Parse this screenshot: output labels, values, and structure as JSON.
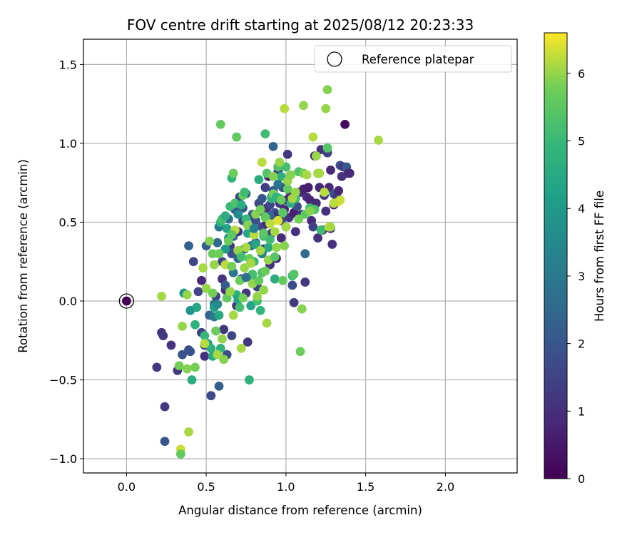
{
  "chart_data": {
    "type": "scatter",
    "title": "FOV centre drift starting at 2025/08/12 20:23:33",
    "xlabel": "Angular distance from reference (arcmin)",
    "ylabel": "Rotation from reference (arcmin)",
    "xlim": [
      -0.27,
      2.45
    ],
    "ylim": [
      -1.09,
      1.66
    ],
    "xticks": [
      0.0,
      0.5,
      1.0,
      1.5,
      2.0
    ],
    "xtick_labels": [
      "0.0",
      "0.5",
      "1.0",
      "1.5",
      "2.0"
    ],
    "yticks": [
      -1.0,
      -0.5,
      0.0,
      0.5,
      1.0,
      1.5
    ],
    "ytick_labels": [
      "−1.0",
      "−0.5",
      "0.0",
      "0.5",
      "1.0",
      "1.5"
    ],
    "grid": true,
    "colormap": "viridis",
    "colorbar": {
      "label": "Hours from first FF file",
      "range": [
        0,
        6.6
      ],
      "ticks": [
        0,
        1,
        2,
        3,
        4,
        5,
        6
      ],
      "tick_labels": [
        "0",
        "1",
        "2",
        "3",
        "4",
        "5",
        "6"
      ]
    },
    "legend": {
      "placement": "top-right",
      "entries": [
        {
          "label": "Reference platepar",
          "marker": "open-circle"
        }
      ]
    },
    "reference_point": {
      "x": 0.0,
      "y": 0.0,
      "value": 0.0
    },
    "points": [
      [
        0.19,
        -0.42,
        1.2
      ],
      [
        0.22,
        -0.2,
        1.1
      ],
      [
        0.23,
        -0.22,
        1.3
      ],
      [
        0.24,
        -0.67,
        1.2
      ],
      [
        0.24,
        -0.89,
        2.0
      ],
      [
        0.28,
        -0.28,
        1.1
      ],
      [
        0.32,
        -0.44,
        1.2
      ],
      [
        0.35,
        -0.34,
        2.0
      ],
      [
        0.39,
        -0.31,
        1.7
      ],
      [
        0.4,
        -0.32,
        1.9
      ],
      [
        0.39,
        0.35,
        2.3
      ],
      [
        0.42,
        0.25,
        1.6
      ],
      [
        0.45,
        0.06,
        1.5
      ],
      [
        0.47,
        0.13,
        0.9
      ],
      [
        0.47,
        -0.2,
        1.5
      ],
      [
        0.49,
        -0.28,
        1.4
      ],
      [
        0.49,
        -0.35,
        1.0
      ],
      [
        0.5,
        0.35,
        2.2
      ],
      [
        0.52,
        -0.09,
        2.4
      ],
      [
        0.53,
        -0.6,
        1.7
      ],
      [
        0.55,
        -0.02,
        2.6
      ],
      [
        0.56,
        0.03,
        1.5
      ],
      [
        0.57,
        0.37,
        2.5
      ],
      [
        0.58,
        -0.54,
        2.2
      ],
      [
        0.58,
        0.47,
        3.0
      ],
      [
        0.6,
        0.14,
        1.1
      ],
      [
        0.6,
        0.25,
        1.5
      ],
      [
        0.61,
        -0.18,
        1.2
      ],
      [
        0.62,
        0.07,
        1.0
      ],
      [
        0.63,
        -0.34,
        1.8
      ],
      [
        0.64,
        0.52,
        2.7
      ],
      [
        0.65,
        0.35,
        1.3
      ],
      [
        0.66,
        -0.22,
        1.6
      ],
      [
        0.66,
        0.3,
        1.8
      ],
      [
        0.67,
        0.41,
        2.1
      ],
      [
        0.68,
        0.58,
        2.0
      ],
      [
        0.69,
        -0.03,
        1.3
      ],
      [
        0.7,
        0.44,
        1.2
      ],
      [
        0.7,
        0.27,
        2.4
      ],
      [
        0.71,
        0.66,
        1.5
      ],
      [
        0.72,
        0.14,
        1.6
      ],
      [
        0.73,
        0.59,
        2.1
      ],
      [
        0.73,
        0.51,
        1.8
      ],
      [
        0.74,
        0.33,
        2.5
      ],
      [
        0.75,
        0.05,
        1.1
      ],
      [
        0.75,
        0.68,
        2.6
      ],
      [
        0.76,
        -0.26,
        1.2
      ],
      [
        0.77,
        0.44,
        0.9
      ],
      [
        0.78,
        0.24,
        1.8
      ],
      [
        0.79,
        0.55,
        2.3
      ],
      [
        0.8,
        0.53,
        1.4
      ],
      [
        0.81,
        0.37,
        2.2
      ],
      [
        0.81,
        0.51,
        1.9
      ],
      [
        0.82,
        0.09,
        1.5
      ],
      [
        0.83,
        0.62,
        1.7
      ],
      [
        0.84,
        0.57,
        2.2
      ],
      [
        0.85,
        0.47,
        1.6
      ],
      [
        0.85,
        0.65,
        2.0
      ],
      [
        0.86,
        0.33,
        1.2
      ],
      [
        0.87,
        0.72,
        1.4
      ],
      [
        0.88,
        0.49,
        0.8
      ],
      [
        0.88,
        0.59,
        1.1
      ],
      [
        0.89,
        0.79,
        0.6
      ],
      [
        0.9,
        0.61,
        1.6
      ],
      [
        0.9,
        0.23,
        1.0
      ],
      [
        0.91,
        0.66,
        2.3
      ],
      [
        0.91,
        0.43,
        1.3
      ],
      [
        0.92,
        0.7,
        2.0
      ],
      [
        0.92,
        0.98,
        2.4
      ],
      [
        0.93,
        0.56,
        1.9
      ],
      [
        0.94,
        0.54,
        1.0
      ],
      [
        0.94,
        0.27,
        0.7
      ],
      [
        0.95,
        0.82,
        1.3
      ],
      [
        0.96,
        0.62,
        1.2
      ],
      [
        0.97,
        0.4,
        0.9
      ],
      [
        0.97,
        0.51,
        1.7
      ],
      [
        0.98,
        0.72,
        1.8
      ],
      [
        0.99,
        0.58,
        0.8
      ],
      [
        1.0,
        0.64,
        1.0
      ],
      [
        1.0,
        0.47,
        1.4
      ],
      [
        1.01,
        0.93,
        1.2
      ],
      [
        1.02,
        0.53,
        1.1
      ],
      [
        1.03,
        0.67,
        0.9
      ],
      [
        1.04,
        0.1,
        1.7
      ],
      [
        1.05,
        0.56,
        0.6
      ],
      [
        1.05,
        -0.01,
        1.3
      ],
      [
        1.06,
        0.44,
        1.0
      ],
      [
        1.07,
        0.6,
        1.8
      ],
      [
        1.08,
        0.54,
        0.7
      ],
      [
        1.09,
        0.69,
        0.9
      ],
      [
        1.1,
        0.55,
        1.1
      ],
      [
        1.11,
        0.71,
        0.7
      ],
      [
        1.12,
        0.3,
        2.6
      ],
      [
        1.12,
        0.12,
        1.2
      ],
      [
        1.13,
        0.66,
        1.0
      ],
      [
        1.14,
        0.72,
        0.6
      ],
      [
        1.15,
        0.64,
        0.8
      ],
      [
        1.16,
        0.51,
        0.9
      ],
      [
        1.17,
        0.47,
        1.5
      ],
      [
        1.18,
        0.92,
        0.7
      ],
      [
        1.19,
        0.62,
        0.9
      ],
      [
        1.2,
        0.4,
        1.1
      ],
      [
        1.21,
        0.72,
        0.8
      ],
      [
        1.22,
        0.96,
        1.0
      ],
      [
        1.23,
        0.45,
        0.7
      ],
      [
        1.24,
        0.67,
        1.3
      ],
      [
        1.25,
        0.57,
        1.0
      ],
      [
        1.26,
        0.94,
        1.4
      ],
      [
        1.27,
        0.72,
        0.8
      ],
      [
        1.28,
        0.83,
        0.9
      ],
      [
        1.28,
        0.46,
        1.2
      ],
      [
        1.29,
        0.36,
        1.1
      ],
      [
        1.3,
        0.68,
        1.9
      ],
      [
        1.3,
        0.61,
        0.7
      ],
      [
        1.32,
        0.66,
        1.2
      ],
      [
        1.33,
        0.7,
        0.8
      ],
      [
        1.34,
        0.86,
        1.8
      ],
      [
        1.35,
        0.79,
        1.1
      ],
      [
        1.36,
        0.85,
        1.2
      ],
      [
        1.37,
        1.12,
        0.2
      ],
      [
        1.38,
        0.85,
        2.1
      ],
      [
        1.39,
        0.81,
        1.0
      ],
      [
        1.4,
        0.81,
        0.9
      ],
      [
        0.9,
        0.54,
        2.5
      ],
      [
        0.78,
        0.35,
        2.8
      ],
      [
        0.67,
        0.18,
        2.9
      ],
      [
        0.62,
        0.1,
        2.2
      ],
      [
        0.55,
        -0.1,
        3.1
      ],
      [
        0.85,
        0.3,
        3.4
      ],
      [
        0.36,
        0.05,
        3.8
      ],
      [
        0.4,
        -0.06,
        3.9
      ],
      [
        0.44,
        -0.04,
        4.4
      ],
      [
        0.43,
        -0.15,
        4.8
      ],
      [
        0.41,
        -0.5,
        4.6
      ],
      [
        0.49,
        -0.22,
        4.9
      ],
      [
        0.51,
        -0.27,
        4.3
      ],
      [
        0.53,
        -0.3,
        4.7
      ],
      [
        0.54,
        -0.35,
        4.5
      ],
      [
        0.55,
        -0.04,
        4.2
      ],
      [
        0.57,
        -0.02,
        3.5
      ],
      [
        0.58,
        -0.09,
        4.5
      ],
      [
        0.59,
        -0.3,
        4.8
      ],
      [
        0.59,
        0.5,
        4.9
      ],
      [
        0.6,
        0.52,
        5.2
      ],
      [
        0.62,
        0.54,
        4.6
      ],
      [
        0.62,
        0.33,
        4.1
      ],
      [
        0.63,
        0.46,
        4.3
      ],
      [
        0.64,
        0.4,
        4.0
      ],
      [
        0.65,
        0.6,
        5.0
      ],
      [
        0.66,
        0.78,
        4.8
      ],
      [
        0.67,
        0.81,
        5.7
      ],
      [
        0.68,
        0.62,
        5.3
      ],
      [
        0.69,
        0.04,
        4.7
      ],
      [
        0.7,
        0.01,
        4.3
      ],
      [
        0.71,
        -0.04,
        5.2
      ],
      [
        0.72,
        0.61,
        4.6
      ],
      [
        0.73,
        0.67,
        5.6
      ],
      [
        0.74,
        0.69,
        5.1
      ],
      [
        0.75,
        0.52,
        5.0
      ],
      [
        0.76,
        0.43,
        4.4
      ],
      [
        0.77,
        -0.5,
        4.8
      ],
      [
        0.78,
        -0.03,
        4.3
      ],
      [
        0.79,
        0.17,
        5.2
      ],
      [
        0.8,
        0.13,
        5.1
      ],
      [
        0.8,
        0.25,
        5.0
      ],
      [
        0.81,
        0.36,
        4.4
      ],
      [
        0.82,
        0.0,
        5.2
      ],
      [
        0.83,
        0.77,
        4.6
      ],
      [
        0.84,
        -0.06,
        4.9
      ],
      [
        0.85,
        0.18,
        5.3
      ],
      [
        0.86,
        0.41,
        5.2
      ],
      [
        0.86,
        0.43,
        5.5
      ],
      [
        0.87,
        0.53,
        5.6
      ],
      [
        0.87,
        1.06,
        5.1
      ],
      [
        0.88,
        0.81,
        5.4
      ],
      [
        0.89,
        0.34,
        4.5
      ],
      [
        0.9,
        0.39,
        5.1
      ],
      [
        0.91,
        0.65,
        4.8
      ],
      [
        0.92,
        0.68,
        5.8
      ],
      [
        0.93,
        0.14,
        4.6
      ],
      [
        0.94,
        0.66,
        4.8
      ],
      [
        0.95,
        0.85,
        5.3
      ],
      [
        0.96,
        0.65,
        4.9
      ],
      [
        0.97,
        0.79,
        4.7
      ],
      [
        0.98,
        0.56,
        5.5
      ],
      [
        0.98,
        0.13,
        5.6
      ],
      [
        0.99,
        0.35,
        5.9
      ],
      [
        1.0,
        0.85,
        5.2
      ],
      [
        1.01,
        0.71,
        5.6
      ],
      [
        1.03,
        0.62,
        4.6
      ],
      [
        1.04,
        0.16,
        5.0
      ],
      [
        1.05,
        0.17,
        5.4
      ],
      [
        1.06,
        0.65,
        5.1
      ],
      [
        1.08,
        0.82,
        5.3
      ],
      [
        1.11,
        0.81,
        5.8
      ],
      [
        1.12,
        0.55,
        5.5
      ],
      [
        1.15,
        0.59,
        5.1
      ],
      [
        1.18,
        0.58,
        5.4
      ],
      [
        1.2,
        0.81,
        6.0
      ],
      [
        1.22,
        0.45,
        5.1
      ],
      [
        1.26,
        0.97,
        5.4
      ],
      [
        1.27,
        0.47,
        6.3
      ],
      [
        1.33,
        0.63,
        6.5
      ],
      [
        0.22,
        0.03,
        6.1
      ],
      [
        0.35,
        -0.16,
        6.0
      ],
      [
        0.33,
        -0.41,
        5.8
      ],
      [
        0.34,
        -0.94,
        6.3
      ],
      [
        0.34,
        -0.97,
        5.6
      ],
      [
        0.38,
        0.04,
        6.0
      ],
      [
        0.38,
        -0.43,
        5.9
      ],
      [
        0.39,
        -0.83,
        6.1
      ],
      [
        0.43,
        -0.42,
        5.8
      ],
      [
        0.48,
        0.21,
        6.1
      ],
      [
        0.49,
        -0.27,
        6.2
      ],
      [
        0.5,
        0.08,
        6.0
      ],
      [
        0.52,
        0.38,
        5.9
      ],
      [
        0.54,
        0.05,
        5.8
      ],
      [
        0.54,
        0.3,
        5.7
      ],
      [
        0.55,
        0.23,
        6.0
      ],
      [
        0.56,
        -0.19,
        5.7
      ],
      [
        0.57,
        -0.34,
        6.1
      ],
      [
        0.58,
        0.3,
        5.7
      ],
      [
        0.59,
        1.12,
        5.6
      ],
      [
        0.6,
        -0.24,
        6.0
      ],
      [
        0.61,
        -0.37,
        5.9
      ],
      [
        0.62,
        0.23,
        6.2
      ],
      [
        0.63,
        0.02,
        5.6
      ],
      [
        0.64,
        0.38,
        5.7
      ],
      [
        0.65,
        0.06,
        6.0
      ],
      [
        0.66,
        0.22,
        5.8
      ],
      [
        0.67,
        -0.09,
        6.1
      ],
      [
        0.68,
        0.45,
        6.2
      ],
      [
        0.69,
        1.04,
        5.6
      ],
      [
        0.7,
        0.32,
        6.0
      ],
      [
        0.71,
        0.13,
        5.7
      ],
      [
        0.72,
        -0.3,
        6.1
      ],
      [
        0.73,
        0.02,
        5.8
      ],
      [
        0.74,
        0.21,
        6.0
      ],
      [
        0.75,
        0.34,
        6.1
      ],
      [
        0.76,
        0.48,
        5.9
      ],
      [
        0.77,
        0.27,
        5.7
      ],
      [
        0.78,
        0.24,
        6.1
      ],
      [
        0.79,
        0.11,
        6.0
      ],
      [
        0.8,
        0.42,
        6.2
      ],
      [
        0.81,
        0.55,
        5.9
      ],
      [
        0.82,
        0.03,
        6.0
      ],
      [
        0.83,
        0.13,
        5.6
      ],
      [
        0.84,
        0.32,
        6.1
      ],
      [
        0.85,
        0.88,
        6.2
      ],
      [
        0.86,
        0.07,
        6.0
      ],
      [
        0.87,
        0.19,
        5.7
      ],
      [
        0.88,
        -0.14,
        6.1
      ],
      [
        0.89,
        0.26,
        6.0
      ],
      [
        0.9,
        0.49,
        6.2
      ],
      [
        0.92,
        0.79,
        5.9
      ],
      [
        0.93,
        0.44,
        6.1
      ],
      [
        0.94,
        0.34,
        6.0
      ],
      [
        0.95,
        0.51,
        6.4
      ],
      [
        0.96,
        0.88,
        6.0
      ],
      [
        0.97,
        0.64,
        5.7
      ],
      [
        0.99,
        1.22,
        6.2
      ],
      [
        1.0,
        0.47,
        6.1
      ],
      [
        1.01,
        0.76,
        6.0
      ],
      [
        1.03,
        0.8,
        5.9
      ],
      [
        1.04,
        0.65,
        6.1
      ],
      [
        1.06,
        0.69,
        6.0
      ],
      [
        1.08,
        0.52,
        5.8
      ],
      [
        1.09,
        -0.32,
        5.7
      ],
      [
        1.1,
        -0.05,
        5.9
      ],
      [
        1.11,
        1.24,
        6.0
      ],
      [
        1.13,
        0.8,
        6.1
      ],
      [
        1.15,
        0.57,
        5.9
      ],
      [
        1.17,
        1.04,
        6.2
      ],
      [
        1.19,
        0.92,
        6.0
      ],
      [
        1.21,
        0.81,
        6.1
      ],
      [
        1.24,
        0.69,
        6.2
      ],
      [
        1.25,
        1.22,
        6.0
      ],
      [
        1.26,
        1.34,
        5.9
      ],
      [
        1.28,
        0.47,
        6.1
      ],
      [
        1.3,
        0.62,
        6.2
      ],
      [
        1.34,
        0.64,
        6.3
      ],
      [
        1.58,
        1.02,
        6.1
      ],
      [
        0.66,
        0.42,
        5.5
      ],
      [
        0.72,
        0.28,
        5.2
      ],
      [
        0.84,
        0.58,
        5.8
      ],
      [
        0.93,
        0.28,
        5.4
      ],
      [
        0.7,
        0.55,
        3.6
      ],
      [
        0.8,
        0.46,
        3.2
      ],
      [
        0.75,
        0.15,
        2.7
      ],
      [
        0.95,
        0.74,
        2.9
      ]
    ]
  }
}
